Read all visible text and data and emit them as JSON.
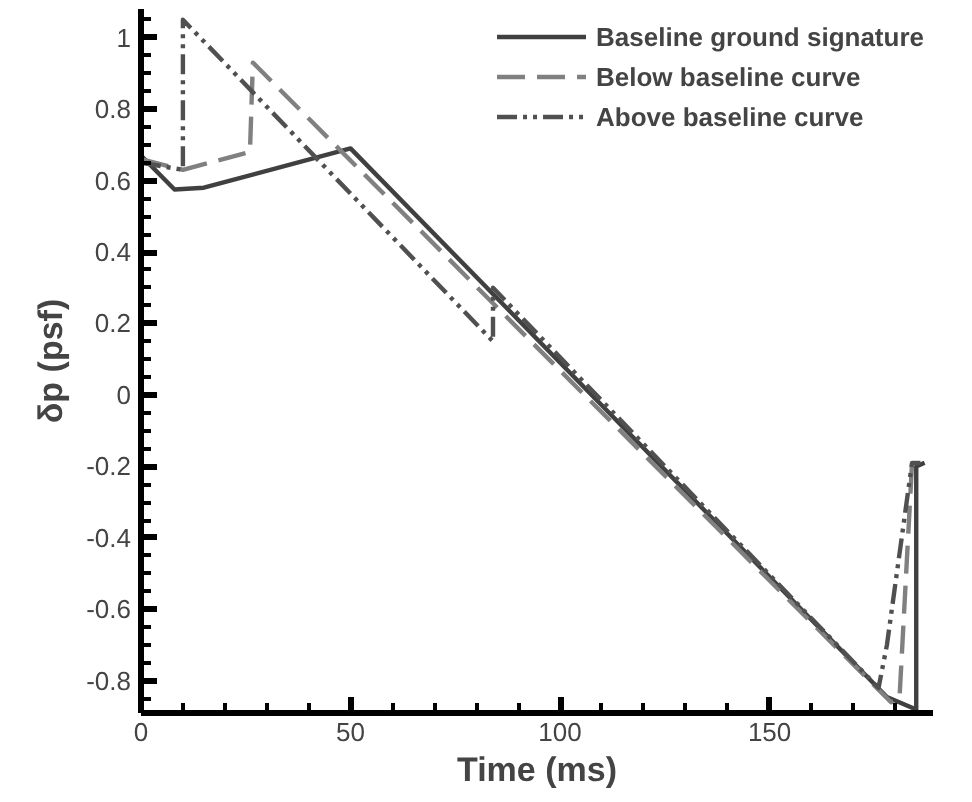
{
  "chart_data": {
    "type": "line",
    "xlabel": "Time (ms)",
    "ylabel": "δp (psf)",
    "xlim": [
      0,
      189
    ],
    "ylim": [
      -0.89,
      1.08
    ],
    "xticks": [
      0,
      50,
      100,
      150
    ],
    "yticks": [
      -0.8,
      -0.6,
      -0.4,
      -0.2,
      0,
      0.2,
      0.4,
      0.6,
      0.8,
      1
    ],
    "grid": false,
    "legend": "top right",
    "series": [
      {
        "name": "Baseline ground signature",
        "color": "#404040",
        "line_style": "solid",
        "x": [
          0,
          8,
          15,
          50,
          178,
          185,
          185,
          187
        ],
        "values": [
          0.67,
          0.575,
          0.58,
          0.69,
          -0.845,
          -0.88,
          -0.2,
          -0.19
        ]
      },
      {
        "name": "Below baseline curve",
        "color": "#808080",
        "line_style": "dashed",
        "x": [
          0,
          10,
          26,
          26.7,
          179,
          181,
          184,
          185
        ],
        "values": [
          0.66,
          0.63,
          0.68,
          0.93,
          -0.86,
          -0.85,
          -0.19,
          -0.19
        ]
      },
      {
        "name": "Above baseline curve",
        "color": "#505050",
        "line_style": "dashdot",
        "x": [
          0,
          10,
          10,
          84,
          84,
          176,
          178,
          184,
          186
        ],
        "values": [
          0.65,
          0.63,
          1.05,
          0.15,
          0.3,
          -0.82,
          -0.7,
          -0.19,
          -0.19
        ]
      }
    ]
  }
}
